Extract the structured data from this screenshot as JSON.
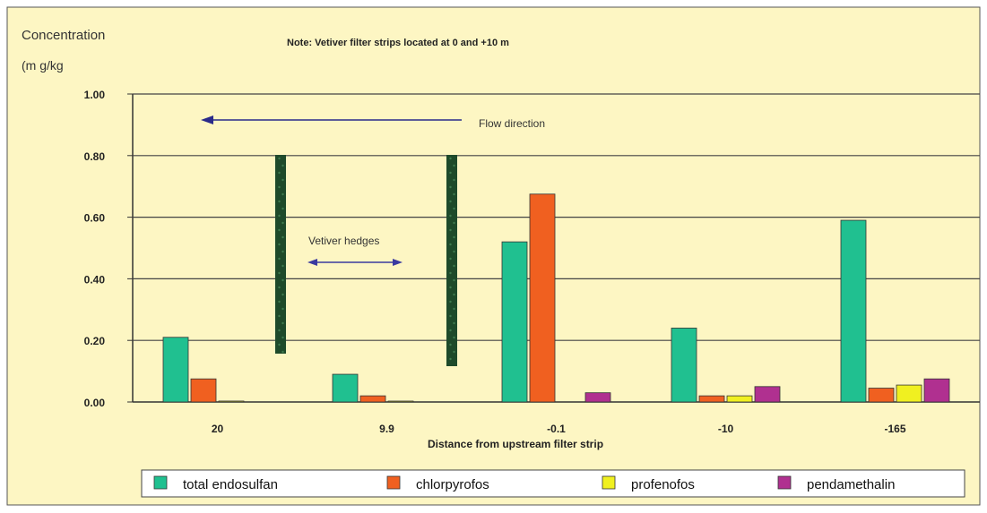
{
  "chart_data": {
    "type": "bar",
    "title": "Note: Vetiver filter strips located at 0 and +10 m",
    "ylabel_line1": "Concentration",
    "ylabel_line2": "(m g/kg",
    "xlabel": "Distance from upstream filter strip",
    "categories": [
      "20",
      "9.9",
      "-0.1",
      "-10",
      "-165"
    ],
    "y_ticks": [
      "1.00",
      "0.80",
      "0.60",
      "0.40",
      "0.20",
      "0.00"
    ],
    "ylim": [
      0,
      1.0
    ],
    "grid": true,
    "legend_position": "bottom",
    "series": [
      {
        "name": "total endosulfan",
        "color": "#20c090",
        "values": [
          0.21,
          0.09,
          0.52,
          0.24,
          0.59
        ]
      },
      {
        "name": "chlorpyrofos",
        "color": "#f06020",
        "values": [
          0.075,
          0.02,
          0.675,
          0.02,
          0.045
        ]
      },
      {
        "name": "profenofos",
        "color": "#f0f020",
        "values": [
          0.003,
          0.002,
          0.0,
          0.02,
          0.055
        ]
      },
      {
        "name": "pendamethalin",
        "color": "#b03090",
        "values": [
          0.0,
          0.0,
          0.03,
          0.05,
          0.075
        ]
      }
    ],
    "annotations": {
      "flow_direction": "Flow direction",
      "vetiver_hedges": "Vetiver hedges"
    },
    "hedge_color": "#1e4a2a",
    "background_color": "#fdf6c3"
  }
}
